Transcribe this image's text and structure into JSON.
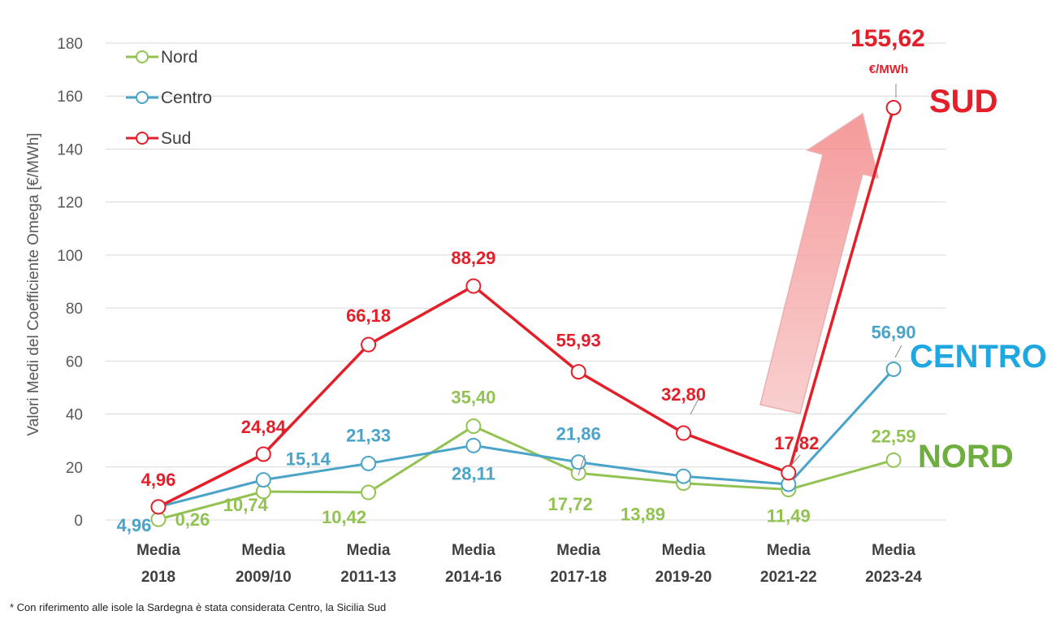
{
  "chart_data": {
    "type": "line",
    "title": "",
    "xlabel": "",
    "ylabel": "Valori  Medi del Coefficiente Omega [€/MWh]",
    "ylim": [
      0,
      180
    ],
    "yticks": [
      "0",
      "20",
      "40",
      "60",
      "80",
      "100",
      "120",
      "140",
      "160",
      "180"
    ],
    "ytick_values": [
      0,
      20,
      40,
      60,
      80,
      100,
      120,
      140,
      160,
      180
    ],
    "grid": true,
    "legend_position": "top-left",
    "categories": [
      [
        "Media",
        "2018"
      ],
      [
        "Media",
        "2009/10"
      ],
      [
        "Media",
        "2011-13"
      ],
      [
        "Media",
        "2014-16"
      ],
      [
        "Media",
        "2017-18"
      ],
      [
        "Media",
        "2019-20"
      ],
      [
        "Media",
        "2021-22"
      ],
      [
        "Media",
        "2023-24"
      ]
    ],
    "series": [
      {
        "name": "Nord",
        "color": "#92c352",
        "values": [
          0.26,
          10.74,
          10.42,
          35.4,
          17.72,
          13.89,
          11.49,
          22.59
        ],
        "labels": [
          "0,26",
          "10,74",
          "10,42",
          "35,40",
          "17,72",
          "13,89",
          "11,49",
          "22,59"
        ]
      },
      {
        "name": "Centro",
        "color": "#4aa3c8",
        "values": [
          4.96,
          15.14,
          21.33,
          28.11,
          21.86,
          16.5,
          13.5,
          56.9
        ],
        "labels": [
          "4,96",
          "15,14",
          "21,33",
          "28,11",
          "21,86",
          "",
          "",
          "56,90"
        ]
      },
      {
        "name": "Sud",
        "color": "#e3202a",
        "values": [
          4.96,
          24.84,
          66.18,
          88.29,
          55.93,
          32.8,
          17.82,
          155.62
        ],
        "labels": [
          "4,96",
          "24,84",
          "66,18",
          "88,29",
          "55,93",
          "32,80",
          "17,82",
          "155,62"
        ]
      }
    ],
    "annotations": {
      "unit": "€/MWh",
      "region_sud": "SUD",
      "region_centro": "CENTRO",
      "region_nord": "NORD",
      "arrow": "upward trend arrow (light red) pointing to 2023-24 Sud value"
    }
  },
  "footnote": "* Con riferimento alle isole la Sardegna è stata considerata Centro, la Sicilia Sud"
}
